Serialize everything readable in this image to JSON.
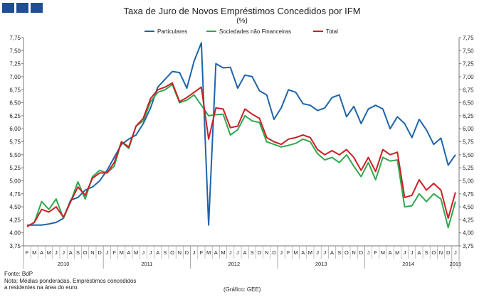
{
  "header": {
    "title": "Taxa de Juro de Novos Empréstimos Concedidos por IFM",
    "subtitle": "(%)"
  },
  "footer": {
    "source": "Fonte: BdP",
    "note_line1": "Nota: Médias ponderadas.  Empréstimos concedidos",
    "note_line2": "a residentes na área do euro.",
    "credit": "(Gráfico: GEE)"
  },
  "colors": {
    "logo": "#1f4e96",
    "particulares": "#1f64a8",
    "sociedades": "#2fa84f",
    "total": "#cc1f24",
    "axis": "#777777"
  },
  "chart_data": {
    "type": "line",
    "title": "Taxa de Juro de Novos Empréstimos Concedidos por IFM",
    "ylabel": "%",
    "ylim": [
      3.75,
      7.75
    ],
    "ytick_step": 0.25,
    "yticks": [
      "3,75",
      "4,00",
      "4,25",
      "4,50",
      "4,75",
      "5,00",
      "5,25",
      "5,50",
      "5,75",
      "6,00",
      "6,25",
      "6,50",
      "6,75",
      "7,00",
      "7,25",
      "7,50",
      "7,75"
    ],
    "month_labels": [
      "F",
      "M",
      "A",
      "M",
      "J",
      "J",
      "A",
      "S",
      "O",
      "N",
      "D",
      "J",
      "F",
      "M",
      "A",
      "M",
      "J",
      "J",
      "A",
      "S",
      "O",
      "N",
      "D",
      "J",
      "F",
      "M",
      "A",
      "M",
      "J",
      "J",
      "A",
      "S",
      "O",
      "N",
      "D",
      "J",
      "F",
      "M",
      "A",
      "M",
      "J",
      "J",
      "A",
      "S",
      "O",
      "N",
      "D",
      "J",
      "F",
      "M",
      "A",
      "M",
      "J",
      "J",
      "A",
      "S",
      "O",
      "N",
      "D",
      "J"
    ],
    "years": [
      {
        "label": "2010",
        "start": 0,
        "end": 10
      },
      {
        "label": "2011",
        "start": 11,
        "end": 22
      },
      {
        "label": "2012",
        "start": 23,
        "end": 34
      },
      {
        "label": "2013",
        "start": 35,
        "end": 46
      },
      {
        "label": "2014",
        "start": 47,
        "end": 58
      },
      {
        "label": "2015",
        "start": 59,
        "end": 59
      }
    ],
    "legend_position": "top-center",
    "series": [
      {
        "name": "Particulares",
        "color_key": "particulares",
        "values": [
          4.15,
          4.15,
          4.15,
          4.17,
          4.2,
          4.28,
          4.63,
          4.68,
          4.82,
          4.88,
          5.0,
          5.2,
          5.45,
          5.7,
          5.8,
          5.88,
          6.1,
          6.4,
          6.8,
          6.95,
          7.1,
          7.08,
          6.78,
          7.3,
          7.65,
          4.15,
          7.25,
          7.17,
          7.18,
          6.78,
          7.03,
          7.0,
          6.73,
          6.65,
          6.18,
          6.4,
          6.75,
          6.7,
          6.48,
          6.45,
          6.35,
          6.4,
          6.6,
          6.65,
          6.23,
          6.43,
          6.1,
          6.38,
          6.45,
          6.38,
          6.0,
          6.23,
          6.1,
          5.83,
          6.18,
          5.98,
          5.7,
          5.82,
          5.3,
          5.5
        ]
      },
      {
        "name": "Sociedades não Financeiras",
        "color_key": "sociedades",
        "values": [
          4.12,
          4.2,
          4.6,
          4.45,
          4.65,
          4.28,
          4.6,
          4.98,
          4.65,
          5.08,
          5.2,
          5.15,
          5.28,
          5.75,
          5.62,
          6.05,
          6.15,
          6.52,
          6.7,
          6.75,
          6.85,
          6.5,
          6.55,
          6.65,
          6.45,
          6.25,
          6.27,
          6.28,
          5.88,
          5.98,
          6.25,
          6.15,
          6.12,
          5.75,
          5.7,
          5.65,
          5.68,
          5.72,
          5.8,
          5.75,
          5.52,
          5.4,
          5.45,
          5.35,
          5.5,
          5.28,
          5.08,
          5.35,
          5.02,
          5.45,
          5.38,
          5.4,
          4.5,
          4.52,
          4.75,
          4.6,
          4.75,
          4.65,
          4.1,
          4.6
        ]
      },
      {
        "name": "Total",
        "color_key": "total",
        "values": [
          4.12,
          4.2,
          4.45,
          4.4,
          4.5,
          4.3,
          4.6,
          4.88,
          4.72,
          5.05,
          5.15,
          5.15,
          5.35,
          5.75,
          5.65,
          6.05,
          6.2,
          6.58,
          6.75,
          6.8,
          6.88,
          6.52,
          6.6,
          6.7,
          6.8,
          5.8,
          6.4,
          6.38,
          6.02,
          6.05,
          6.38,
          6.28,
          6.2,
          5.83,
          5.75,
          5.7,
          5.8,
          5.83,
          5.88,
          5.83,
          5.6,
          5.5,
          5.58,
          5.5,
          5.6,
          5.45,
          5.2,
          5.45,
          5.18,
          5.6,
          5.5,
          5.55,
          4.68,
          4.72,
          5.02,
          4.82,
          4.95,
          4.82,
          4.28,
          4.78
        ]
      }
    ]
  }
}
